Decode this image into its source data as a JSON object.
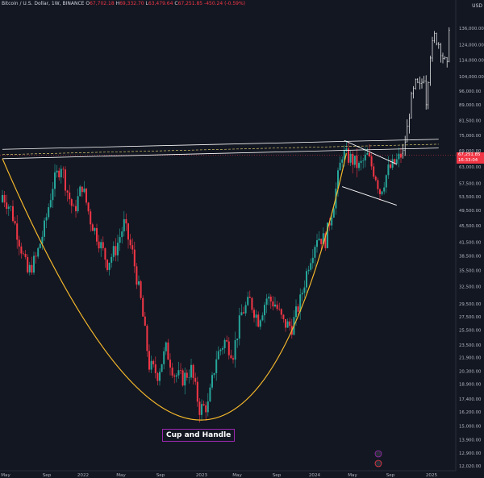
{
  "header": {
    "symbol": "Bitcoin / U.S. Dollar, 1W, BINANCE",
    "o_label": "O",
    "o": "67,702.18",
    "h_label": "H",
    "h": "69,332.70",
    "l_label": "L",
    "l": "63,479.64",
    "c_label": "C",
    "c": "67,251.85",
    "change": "-450.24 (-0.59%)"
  },
  "currency": "USD",
  "price_tag": {
    "price": "67,251.85",
    "timer": "16:33:04"
  },
  "annotation": "Cup and Handle",
  "colors": {
    "background": "#131722",
    "up": "#26a69a",
    "down": "#f23645",
    "cup": "#f5b82b",
    "channel": "#ffffff",
    "dashed": "#f5e27a",
    "annotation_border": "#9c27b0"
  },
  "chart_data": {
    "type": "candlestick",
    "y_scale": "log",
    "y_ticks": [
      "136,000.00",
      "124,000.00",
      "114,000.00",
      "104,000.00",
      "96,000.00",
      "89,000.00",
      "81,500.00",
      "75,000.00",
      "69,000.00",
      "63,000.00",
      "57,500.00",
      "53,500.00",
      "49,500.00",
      "45,500.00",
      "41,500.00",
      "38,500.00",
      "35,500.00",
      "32,500.00",
      "29,500.00",
      "27,500.00",
      "25,500.00",
      "23,500.00",
      "21,900.00",
      "20,300.00",
      "18,900.00",
      "17,400.00",
      "16,200.00",
      "15,000.00",
      "13,900.00",
      "12,900.00",
      "12,020.00"
    ],
    "x_ticks": [
      "May",
      "Sep",
      "2022",
      "May",
      "Sep",
      "2023",
      "May",
      "Sep",
      "2024",
      "May",
      "Sep",
      "2025"
    ],
    "anchors": [
      {
        "t": 0,
        "v": 54000
      },
      {
        "t": 4,
        "v": 50000
      },
      {
        "t": 8,
        "v": 42000
      },
      {
        "t": 12,
        "v": 35000
      },
      {
        "t": 16,
        "v": 38000
      },
      {
        "t": 20,
        "v": 45000
      },
      {
        "t": 24,
        "v": 57000
      },
      {
        "t": 28,
        "v": 64000
      },
      {
        "t": 31,
        "v": 55000
      },
      {
        "t": 34,
        "v": 49000
      },
      {
        "t": 38,
        "v": 57000
      },
      {
        "t": 42,
        "v": 47000
      },
      {
        "t": 46,
        "v": 42000
      },
      {
        "t": 50,
        "v": 37000
      },
      {
        "t": 54,
        "v": 40000
      },
      {
        "t": 58,
        "v": 46000
      },
      {
        "t": 62,
        "v": 39000
      },
      {
        "t": 66,
        "v": 30000
      },
      {
        "t": 70,
        "v": 21000
      },
      {
        "t": 74,
        "v": 20000
      },
      {
        "t": 78,
        "v": 23000
      },
      {
        "t": 82,
        "v": 20000
      },
      {
        "t": 86,
        "v": 19500
      },
      {
        "t": 90,
        "v": 20500
      },
      {
        "t": 94,
        "v": 16500
      },
      {
        "t": 98,
        "v": 16800
      },
      {
        "t": 102,
        "v": 22000
      },
      {
        "t": 106,
        "v": 24000
      },
      {
        "t": 110,
        "v": 22500
      },
      {
        "t": 114,
        "v": 28000
      },
      {
        "t": 118,
        "v": 30000
      },
      {
        "t": 122,
        "v": 27000
      },
      {
        "t": 126,
        "v": 30500
      },
      {
        "t": 130,
        "v": 29500
      },
      {
        "t": 134,
        "v": 26500
      },
      {
        "t": 138,
        "v": 26000
      },
      {
        "t": 142,
        "v": 30000
      },
      {
        "t": 146,
        "v": 37000
      },
      {
        "t": 150,
        "v": 43000
      },
      {
        "t": 154,
        "v": 42000
      },
      {
        "t": 158,
        "v": 52000
      },
      {
        "t": 162,
        "v": 68000
      },
      {
        "t": 166,
        "v": 66000
      },
      {
        "t": 170,
        "v": 63000
      },
      {
        "t": 174,
        "v": 67000
      },
      {
        "t": 178,
        "v": 60000
      },
      {
        "t": 180,
        "v": 55000
      },
      {
        "t": 184,
        "v": 62000
      },
      {
        "t": 188,
        "v": 65000
      },
      {
        "t": 190,
        "v": 67251.85
      }
    ],
    "projection": [
      {
        "t": 191,
        "v": 68000
      },
      {
        "t": 193,
        "v": 78000
      },
      {
        "t": 195,
        "v": 92000
      },
      {
        "t": 197,
        "v": 100000
      },
      {
        "t": 199,
        "v": 98000
      },
      {
        "t": 201,
        "v": 104000
      },
      {
        "t": 202,
        "v": 91000
      },
      {
        "t": 204,
        "v": 118000
      },
      {
        "t": 206,
        "v": 130000
      },
      {
        "t": 208,
        "v": 125000
      },
      {
        "t": 210,
        "v": 116000
      },
      {
        "t": 212,
        "v": 110000
      },
      {
        "t": 213,
        "v": 138000
      }
    ],
    "cup": [
      {
        "t": 0,
        "v": 66000
      },
      {
        "t": 95,
        "v": 15500
      },
      {
        "t": 164,
        "v": 68000
      }
    ],
    "rim_upper": [
      {
        "t": 0,
        "v": 69500
      },
      {
        "t": 208,
        "v": 73500
      }
    ],
    "rim_lower": [
      {
        "t": 0,
        "v": 66000
      },
      {
        "t": 208,
        "v": 70000
      }
    ],
    "rim_dashed": [
      {
        "t": 0,
        "v": 67500
      },
      {
        "t": 208,
        "v": 71500
      }
    ],
    "handle_upper": [
      {
        "t": 163,
        "v": 73000
      },
      {
        "t": 188,
        "v": 64000
      }
    ],
    "handle_lower": [
      {
        "t": 162,
        "v": 56500
      },
      {
        "t": 188,
        "v": 51000
      }
    ]
  }
}
